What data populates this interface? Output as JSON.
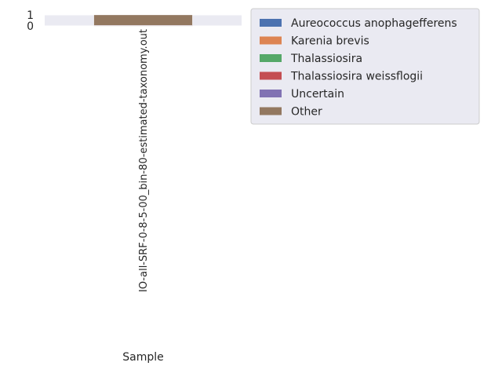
{
  "chart_data": {
    "type": "bar",
    "stacked": true,
    "categories": [
      "IO-all-SRF-0-8-5-00_bin-80-estimated-taxonomy.out"
    ],
    "series": [
      {
        "name": "Aureococcus anophagefferens",
        "values": [
          0.01
        ],
        "color": "#4c72b0"
      },
      {
        "name": "Karenia brevis",
        "values": [
          0.01
        ],
        "color": "#dd8452"
      },
      {
        "name": "Thalassiosira",
        "values": [
          0.01
        ],
        "color": "#55a868"
      },
      {
        "name": "Thalassiosira weissflogii",
        "values": [
          0.01
        ],
        "color": "#c44e52"
      },
      {
        "name": "Uncertain",
        "values": [
          0.01
        ],
        "color": "#8172b3"
      },
      {
        "name": "Other",
        "values": [
          0.95
        ],
        "color": "#937860"
      }
    ],
    "xlabel": "Sample",
    "ylabel": "",
    "ylim": [
      0,
      1
    ],
    "yticks": [
      "0",
      "1"
    ],
    "background": "#eaeaf2",
    "grid": true,
    "legend": "outside-right"
  }
}
